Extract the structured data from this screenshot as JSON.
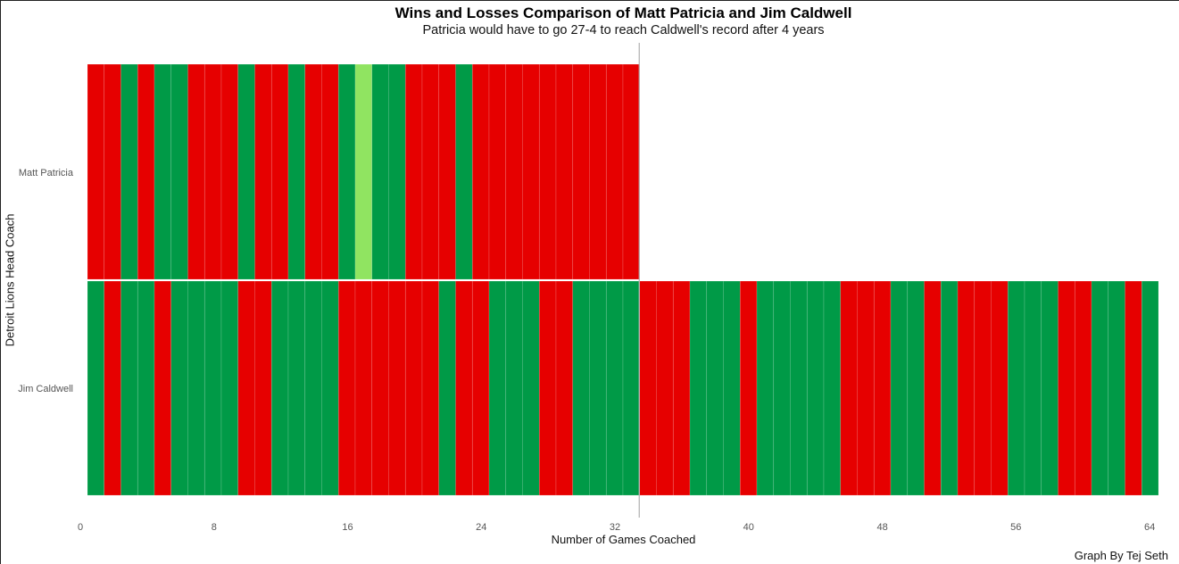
{
  "chart_data": {
    "type": "heatmap",
    "title": "Wins and Losses Comparison of Matt Patricia and Jim Caldwell",
    "subtitle": "Patricia would have to go 27-4 to reach Caldwell's record after 4 years",
    "xlabel": "Number of Games Coached",
    "ylabel": "Detroit Lions Head Coach",
    "xlim": [
      0,
      64
    ],
    "xticks": [
      0,
      8,
      16,
      24,
      32,
      40,
      48,
      56,
      64
    ],
    "reference_line_x": 33,
    "legend_colors": {
      "W": "#009a47",
      "L": "#e60000",
      "T": "#90e461"
    },
    "series": [
      {
        "name": "Matt Patricia",
        "results": [
          "L",
          "L",
          "W",
          "L",
          "W",
          "W",
          "L",
          "L",
          "L",
          "W",
          "L",
          "L",
          "W",
          "L",
          "L",
          "W",
          "T",
          "W",
          "W",
          "L",
          "L",
          "L",
          "W",
          "L",
          "L",
          "L",
          "L",
          "L",
          "L",
          "L",
          "L",
          "L",
          "L"
        ]
      },
      {
        "name": "Jim Caldwell",
        "results": [
          "W",
          "L",
          "W",
          "W",
          "L",
          "W",
          "W",
          "W",
          "W",
          "L",
          "L",
          "W",
          "W",
          "W",
          "W",
          "L",
          "L",
          "L",
          "L",
          "L",
          "L",
          "W",
          "L",
          "L",
          "W",
          "W",
          "W",
          "L",
          "L",
          "W",
          "W",
          "W",
          "W",
          "L",
          "L",
          "L",
          "W",
          "W",
          "W",
          "L",
          "W",
          "W",
          "W",
          "W",
          "W",
          "L",
          "L",
          "L",
          "W",
          "W",
          "L",
          "W",
          "L",
          "L",
          "L",
          "W",
          "W",
          "W",
          "L",
          "L",
          "W",
          "W",
          "L",
          "W"
        ]
      }
    ]
  },
  "caption": "Graph By Tej Seth"
}
